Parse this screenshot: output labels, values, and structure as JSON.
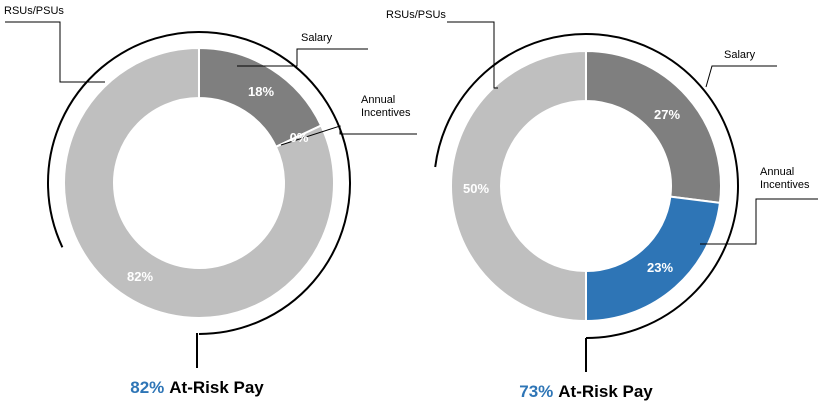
{
  "colors": {
    "salary": "#7f7f7f",
    "annual": "#2e75b6",
    "rsu": "#bfbfbf",
    "accent": "#2e75b6",
    "text": "#000000"
  },
  "chart_data": [
    {
      "type": "pie",
      "variant": "donut",
      "title": "",
      "slices": [
        {
          "label": "Salary",
          "value": 18,
          "value_label": "18%"
        },
        {
          "label": "Annual Incentives",
          "value": 0,
          "value_label": "0%"
        },
        {
          "label": "RSUs/PSUs",
          "value": 82,
          "value_label": "82%"
        }
      ],
      "caption_value": "82%",
      "caption_text": "At-Risk Pay",
      "at_risk_pct": 82
    },
    {
      "type": "pie",
      "variant": "donut",
      "title": "",
      "slices": [
        {
          "label": "Salary",
          "value": 27,
          "value_label": "27%"
        },
        {
          "label": "Annual Incentives",
          "value": 23,
          "value_label": "23%"
        },
        {
          "label": "RSUs/PSUs",
          "value": 50,
          "value_label": "50%"
        }
      ],
      "caption_value": "73%",
      "caption_text": "At-Risk Pay",
      "at_risk_pct": 73
    }
  ]
}
